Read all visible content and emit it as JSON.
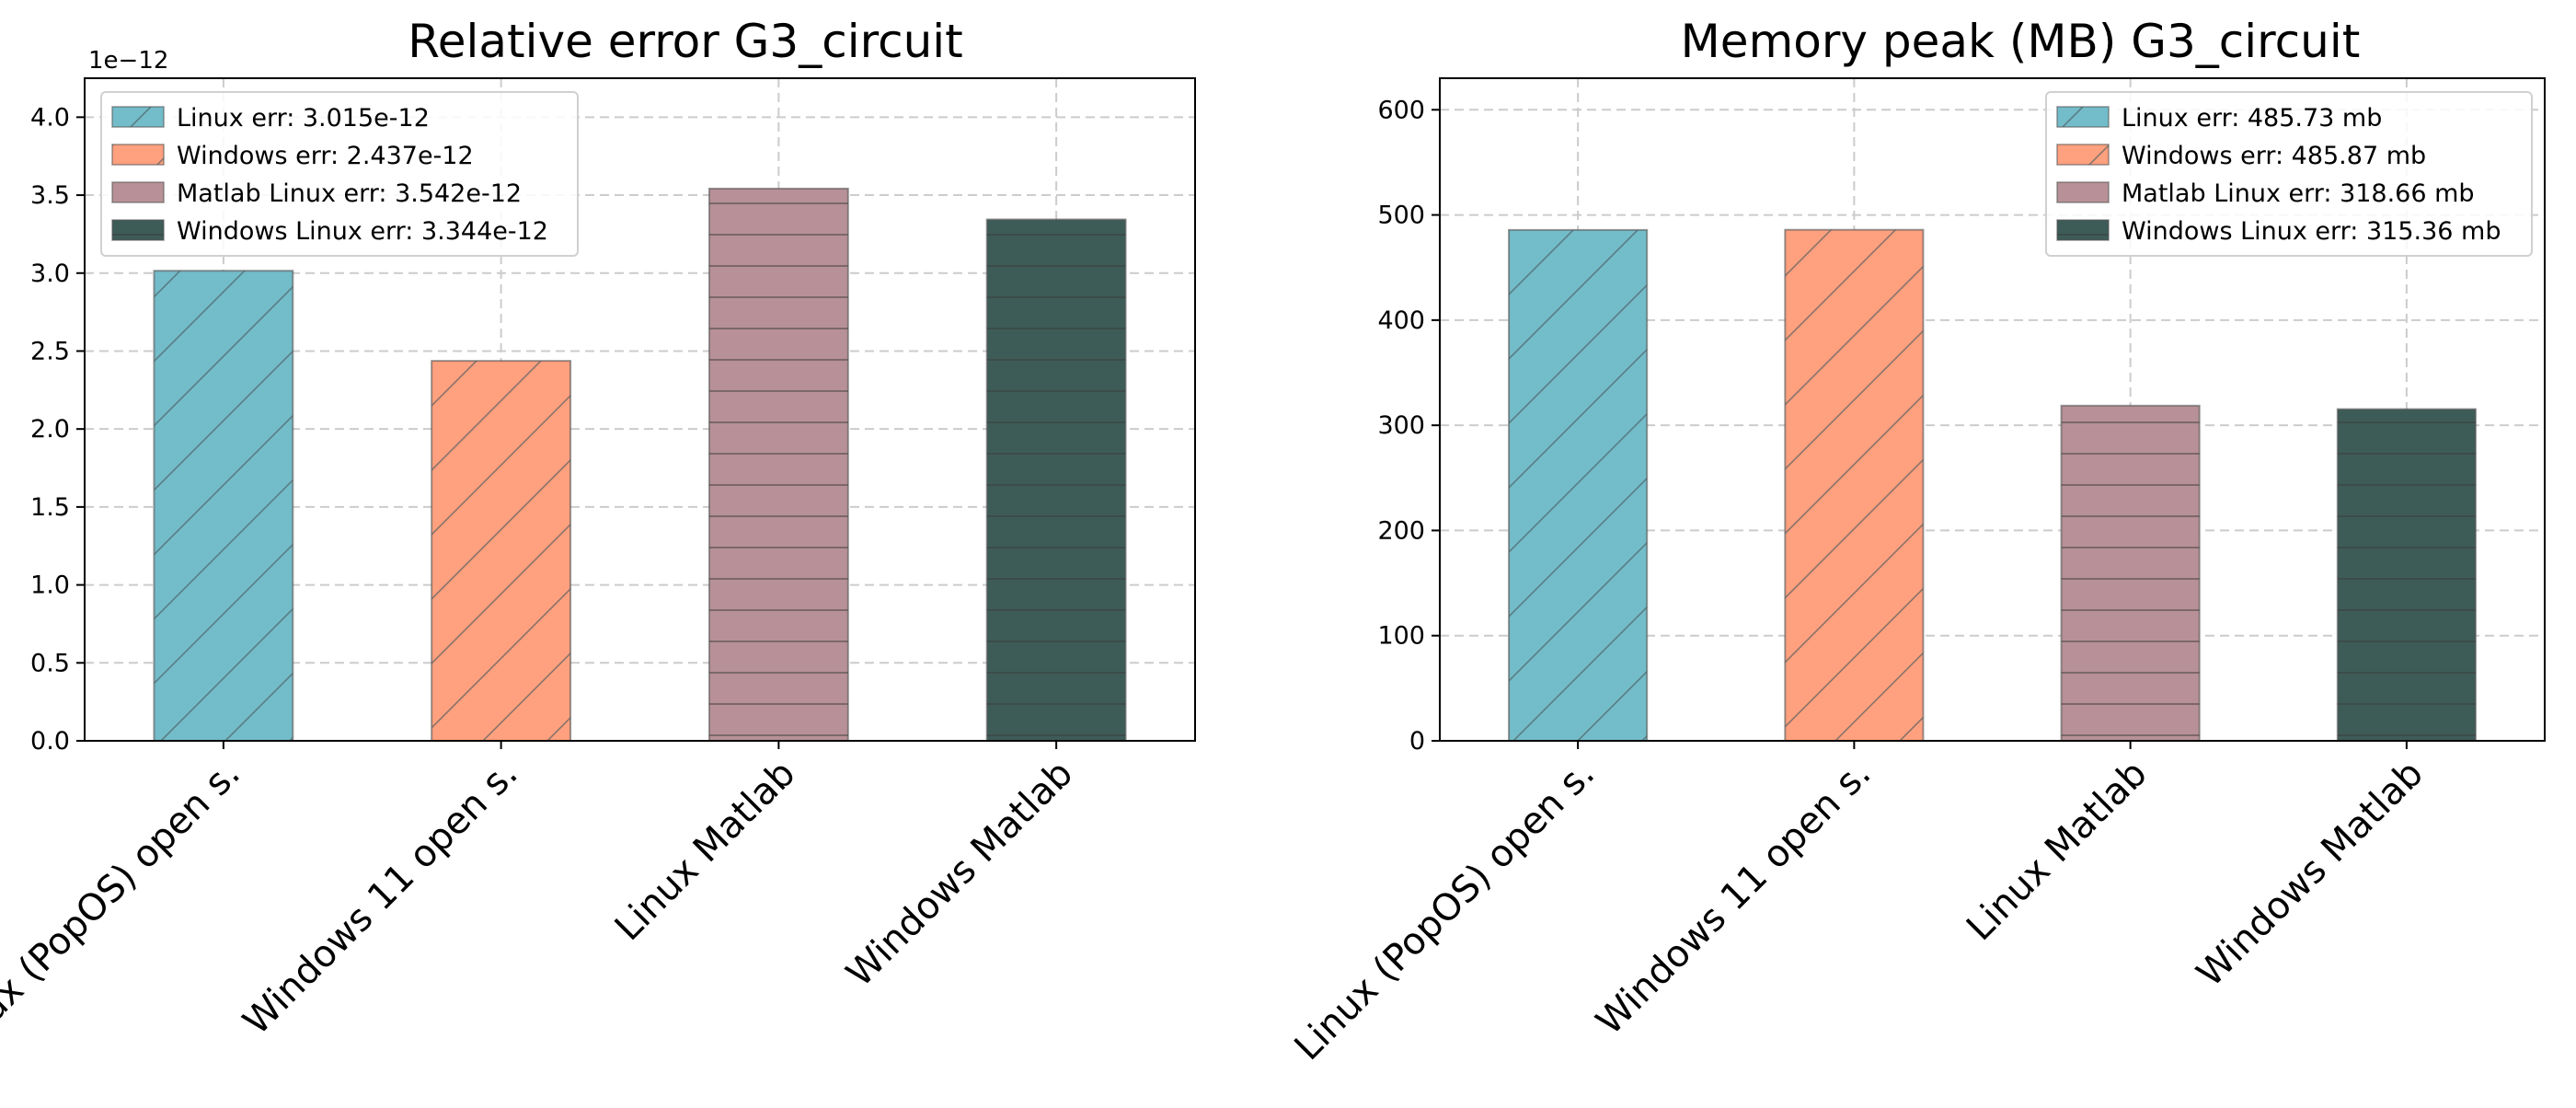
{
  "chart_data": [
    {
      "type": "bar",
      "title": "Relative error G3_circuit",
      "categories": [
        "Linux (PopOS) open s.",
        "Windows 11 open s.",
        "Linux Matlab",
        "Windows Matlab"
      ],
      "values": [
        3.015e-12,
        2.437e-12,
        3.542e-12,
        3.344e-12
      ],
      "display_values": [
        3.015,
        2.437,
        3.542,
        3.344
      ],
      "offset_text": "1e−12",
      "ylim": [
        0,
        4.25e-12
      ],
      "yticks": [
        "0.0",
        "0.5",
        "1.0",
        "1.5",
        "2.0",
        "2.5",
        "3.0",
        "3.5",
        "4.0"
      ],
      "ytick_values": [
        0,
        0.5,
        1.0,
        1.5,
        2.0,
        2.5,
        3.0,
        3.5,
        4.0
      ],
      "grid": true,
      "legend_position": "top-left",
      "legend": [
        "Linux err: 3.015e-12",
        "Windows err: 2.437e-12",
        "Matlab Linux err: 3.542e-12",
        "Windows Linux err: 3.344e-12"
      ]
    },
    {
      "type": "bar",
      "title": "Memory peak (MB) G3_circuit",
      "categories": [
        "Linux (PopOS) open s.",
        "Windows 11 open s.",
        "Linux Matlab",
        "Windows Matlab"
      ],
      "values": [
        485.73,
        485.87,
        318.66,
        315.36
      ],
      "display_values": [
        485.73,
        485.87,
        318.66,
        315.36
      ],
      "ylim": [
        0,
        630
      ],
      "yticks": [
        "0",
        "100",
        "200",
        "300",
        "400",
        "500",
        "600"
      ],
      "ytick_values": [
        0,
        100,
        200,
        300,
        400,
        500,
        600
      ],
      "grid": true,
      "legend_position": "top-right",
      "legend": [
        "Linux err: 485.73 mb",
        "Windows err: 485.87 mb",
        "Matlab Linux err: 318.66 mb",
        "Windows Linux err: 315.36 mb"
      ]
    }
  ],
  "colors": {
    "bars": [
      "#73bcc9",
      "#ffa07e",
      "#b79197",
      "#3e5c57"
    ],
    "hatch": "#4b5a60",
    "grid": "#cccccc"
  },
  "hatch_patterns": [
    "diagonal",
    "diagonal",
    "horizontal",
    "horizontal"
  ]
}
